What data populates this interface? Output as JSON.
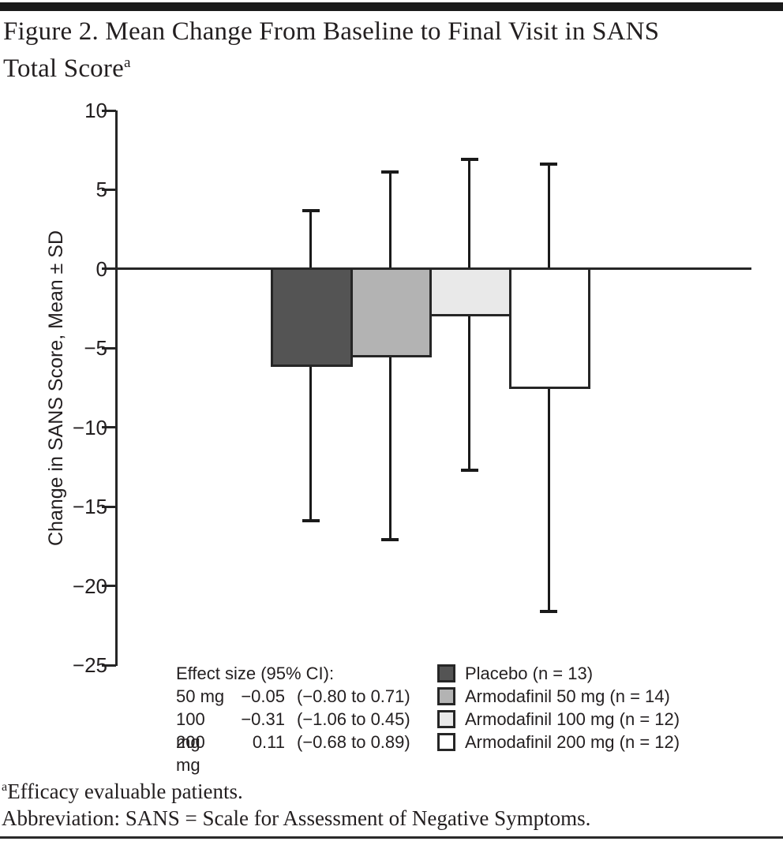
{
  "title": {
    "line1": "Figure 2. Mean Change From Baseline to Final Visit in SANS",
    "line2": "Total Score",
    "superscript": "a"
  },
  "footnotes": {
    "superscript": "a",
    "line1": "Efficacy evaluable patients.",
    "line2": "Abbreviation: SANS = Scale for Assessment of Negative Symptoms."
  },
  "effect_size": {
    "header": "Effect size (95% CI):",
    "rows": [
      {
        "dose": "50 mg",
        "value": "−0.05",
        "ci": "(−0.80 to 0.71)"
      },
      {
        "dose": "100 mg",
        "value": "−0.31",
        "ci": "(−1.06 to 0.45)"
      },
      {
        "dose": "200 mg",
        "value": "0.11",
        "ci": "(−0.68 to 0.89)"
      }
    ]
  },
  "legend": {
    "items": [
      {
        "label": "Placebo (n = 13)",
        "color": "#545454"
      },
      {
        "label": "Armodafinil 50 mg (n = 14)",
        "color": "#b3b3b3"
      },
      {
        "label": "Armodafinil 100 mg (n = 12)",
        "color": "#e9e9e9"
      },
      {
        "label": "Armodafinil 200 mg (n = 12)",
        "color": "#ffffff"
      }
    ]
  },
  "chart_data": {
    "type": "bar",
    "title": "Figure 2. Mean Change From Baseline to Final Visit in SANS Total Score",
    "ylabel": "Change in SANS Score, Mean ± SD",
    "xlabel": "",
    "ylim": [
      -25,
      10
    ],
    "yticks": [
      10,
      5,
      0,
      -5,
      -10,
      -15,
      -20,
      -25
    ],
    "grid": false,
    "legend_position": "bottom",
    "error_bars": "mean ± SD",
    "categories": [
      "Placebo",
      "Armodafinil 50 mg",
      "Armodafinil 100 mg",
      "Armodafinil 200 mg"
    ],
    "n": [
      13,
      14,
      12,
      12
    ],
    "series": [
      {
        "name": "Mean change in SANS total score",
        "values": [
          -6.1,
          -5.5,
          -2.9,
          -7.5
        ],
        "sd": [
          9.8,
          11.6,
          9.8,
          14.1
        ]
      }
    ],
    "bar_colors": [
      "#545454",
      "#b3b3b3",
      "#e9e9e9",
      "#ffffff"
    ],
    "bar_border_color": "#262626"
  }
}
